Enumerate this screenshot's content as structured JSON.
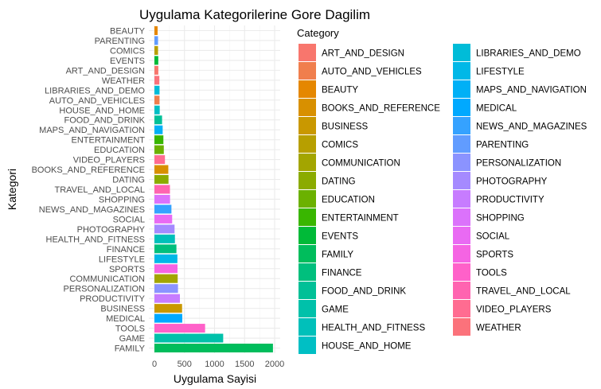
{
  "chart_data": {
    "type": "bar",
    "orientation": "horizontal",
    "title": "Uygulama Kategorilerine Gore Dagilim",
    "xlabel": "Uygulama Sayisi",
    "ylabel": "Kategori",
    "xlim": [
      0,
      2000
    ],
    "xticks": [
      0,
      500,
      1000,
      1500,
      2000
    ],
    "grid": true,
    "legend_title": "Category",
    "legend_position": "right",
    "categories_top_to_bottom": [
      "BEAUTY",
      "PARENTING",
      "COMICS",
      "EVENTS",
      "ART_AND_DESIGN",
      "WEATHER",
      "LIBRARIES_AND_DEMO",
      "AUTO_AND_VEHICLES",
      "HOUSE_AND_HOME",
      "FOOD_AND_DRINK",
      "MAPS_AND_NAVIGATION",
      "ENTERTAINMENT",
      "EDUCATION",
      "VIDEO_PLAYERS",
      "BOOKS_AND_REFERENCE",
      "DATING",
      "TRAVEL_AND_LOCAL",
      "SHOPPING",
      "NEWS_AND_MAGAZINES",
      "SOCIAL",
      "PHOTOGRAPHY",
      "HEALTH_AND_FITNESS",
      "FINANCE",
      "LIFESTYLE",
      "SPORTS",
      "COMMUNICATION",
      "PERSONALIZATION",
      "PRODUCTIVITY",
      "BUSINESS",
      "MEDICAL",
      "TOOLS",
      "GAME",
      "FAMILY"
    ],
    "values_top_to_bottom": [
      53,
      60,
      60,
      64,
      65,
      82,
      85,
      85,
      88,
      127,
      137,
      149,
      156,
      175,
      231,
      234,
      258,
      260,
      283,
      295,
      335,
      341,
      366,
      382,
      384,
      387,
      392,
      424,
      460,
      463,
      843,
      1144,
      1972
    ],
    "legend_entries": [
      {
        "name": "ART_AND_DESIGN",
        "color": "#F8766D"
      },
      {
        "name": "AUTO_AND_VEHICLES",
        "color": "#F07E4D"
      },
      {
        "name": "BEAUTY",
        "color": "#E58700"
      },
      {
        "name": "BOOKS_AND_REFERENCE",
        "color": "#D89000"
      },
      {
        "name": "BUSINESS",
        "color": "#C99800"
      },
      {
        "name": "COMICS",
        "color": "#B79F00"
      },
      {
        "name": "COMMUNICATION",
        "color": "#A3A500"
      },
      {
        "name": "DATING",
        "color": "#8BAB00"
      },
      {
        "name": "EDUCATION",
        "color": "#6BB100"
      },
      {
        "name": "ENTERTAINMENT",
        "color": "#39B600"
      },
      {
        "name": "EVENTS",
        "color": "#00BA38"
      },
      {
        "name": "FAMILY",
        "color": "#00BD5C"
      },
      {
        "name": "FINANCE",
        "color": "#00BF7D"
      },
      {
        "name": "FOOD_AND_DRINK",
        "color": "#00C097"
      },
      {
        "name": "GAME",
        "color": "#00C1AA"
      },
      {
        "name": "HEALTH_AND_FITNESS",
        "color": "#00C0BA"
      },
      {
        "name": "HOUSE_AND_HOME",
        "color": "#00BFC4"
      },
      {
        "name": "LIBRARIES_AND_DEMO",
        "color": "#00BCD8"
      },
      {
        "name": "LIFESTYLE",
        "color": "#00B8E7"
      },
      {
        "name": "MAPS_AND_NAVIGATION",
        "color": "#00B0F6"
      },
      {
        "name": "MEDICAL",
        "color": "#00A9FF"
      },
      {
        "name": "NEWS_AND_MAGAZINES",
        "color": "#35A2FF"
      },
      {
        "name": "PARENTING",
        "color": "#619CFF"
      },
      {
        "name": "PERSONALIZATION",
        "color": "#8B93FF"
      },
      {
        "name": "PHOTOGRAPHY",
        "color": "#A58AFF"
      },
      {
        "name": "PRODUCTIVITY",
        "color": "#C77CFF"
      },
      {
        "name": "SHOPPING",
        "color": "#DB72FB"
      },
      {
        "name": "SOCIAL",
        "color": "#E96AF3"
      },
      {
        "name": "SPORTS",
        "color": "#F564E3"
      },
      {
        "name": "TOOLS",
        "color": "#FF61C9"
      },
      {
        "name": "TRAVEL_AND_LOCAL",
        "color": "#FF64B0"
      },
      {
        "name": "VIDEO_PLAYERS",
        "color": "#FF6C91"
      },
      {
        "name": "WEATHER",
        "color": "#FB727B"
      }
    ]
  }
}
